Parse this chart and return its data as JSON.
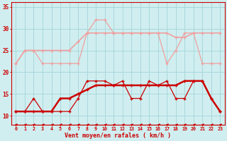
{
  "x": [
    0,
    1,
    2,
    3,
    4,
    5,
    6,
    7,
    8,
    9,
    10,
    11,
    12,
    13,
    14,
    15,
    16,
    17,
    18,
    19,
    20,
    21,
    22,
    23
  ],
  "line1_rafales_smooth": [
    22,
    25,
    25,
    25,
    25,
    25,
    25,
    27,
    29,
    29,
    29,
    29,
    29,
    29,
    29,
    29,
    29,
    29,
    28,
    28,
    29,
    29,
    29,
    29
  ],
  "line2_rafales_peak": [
    22,
    25,
    25,
    22,
    22,
    22,
    22,
    22,
    29,
    32,
    32,
    29,
    29,
    29,
    29,
    29,
    29,
    22,
    25,
    29,
    29,
    22,
    22,
    22
  ],
  "line3_moyen_jagged": [
    11,
    11,
    14,
    11,
    11,
    11,
    11,
    14,
    18,
    18,
    18,
    17,
    18,
    14,
    14,
    18,
    17,
    18,
    14,
    14,
    18,
    18,
    14,
    11
  ],
  "line4_moyen_smooth": [
    11,
    11,
    11,
    11,
    11,
    14,
    14,
    15,
    16,
    17,
    17,
    17,
    17,
    17,
    17,
    17,
    17,
    17,
    17,
    18,
    18,
    18,
    14,
    11
  ],
  "line5_arrows": [
    8,
    8,
    8,
    8,
    8,
    8,
    8,
    8,
    8,
    8,
    8,
    8,
    8,
    8,
    8,
    8,
    8,
    8,
    8,
    8,
    8,
    8,
    8,
    8
  ],
  "color_light": "#f0a0a0",
  "color_dark": "#cc0000",
  "bg_color": "#d0eef0",
  "grid_color": "#a8d8dc",
  "xlabel": "Vent moyen/en rafales ( km/h )",
  "ylim": [
    8,
    36
  ],
  "yticks": [
    10,
    15,
    20,
    25,
    30,
    35
  ]
}
